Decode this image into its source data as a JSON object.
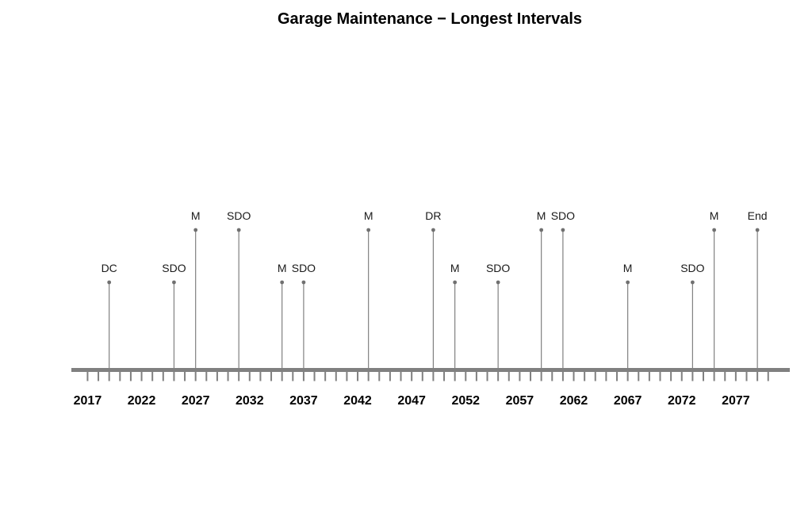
{
  "chart_data": {
    "type": "timeline",
    "title": "Garage Maintenance − Longest Intervals",
    "xlim": [
      2015.5,
      2082
    ],
    "x_ticks": [
      2017,
      2022,
      2027,
      2032,
      2037,
      2042,
      2047,
      2052,
      2057,
      2062,
      2067,
      2072,
      2077
    ],
    "minor_tick_step": 1,
    "minor_tick_range": [
      2017,
      2080
    ],
    "events": [
      {
        "label": "DC",
        "year": 2019,
        "level": "low"
      },
      {
        "label": "SDO",
        "year": 2025,
        "level": "low"
      },
      {
        "label": "M",
        "year": 2027,
        "level": "high"
      },
      {
        "label": "SDO",
        "year": 2031,
        "level": "high"
      },
      {
        "label": "M",
        "year": 2035,
        "level": "low"
      },
      {
        "label": "SDO",
        "year": 2037,
        "level": "low"
      },
      {
        "label": "M",
        "year": 2043,
        "level": "high"
      },
      {
        "label": "DR",
        "year": 2049,
        "level": "high"
      },
      {
        "label": "M",
        "year": 2051,
        "level": "low"
      },
      {
        "label": "SDO",
        "year": 2055,
        "level": "low"
      },
      {
        "label": "M",
        "year": 2059,
        "level": "high"
      },
      {
        "label": "SDO",
        "year": 2061,
        "level": "high"
      },
      {
        "label": "M",
        "year": 2067,
        "level": "low"
      },
      {
        "label": "SDO",
        "year": 2073,
        "level": "low"
      },
      {
        "label": "M",
        "year": 2075,
        "level": "high"
      },
      {
        "label": "End",
        "year": 2079,
        "level": "high"
      }
    ],
    "colors": {
      "axis": "#808080",
      "stem": "#808080",
      "marker": "#707070",
      "text": "#000000"
    }
  }
}
